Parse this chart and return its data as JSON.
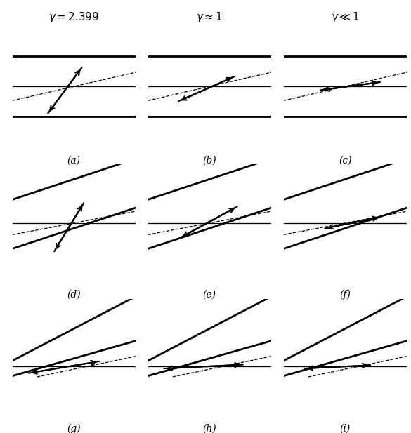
{
  "titles": [
    "$\\gamma = 2.399$",
    "$\\gamma \\approx 1$",
    "$\\gamma \\ll 1$"
  ],
  "labels": [
    "(a)",
    "(b)",
    "(c)",
    "(d)",
    "(e)",
    "(f)",
    "(g)",
    "(h)",
    "(i)"
  ],
  "background_color": "#ffffff",
  "figsize": [
    5.85,
    6.17
  ],
  "dpi": 100
}
